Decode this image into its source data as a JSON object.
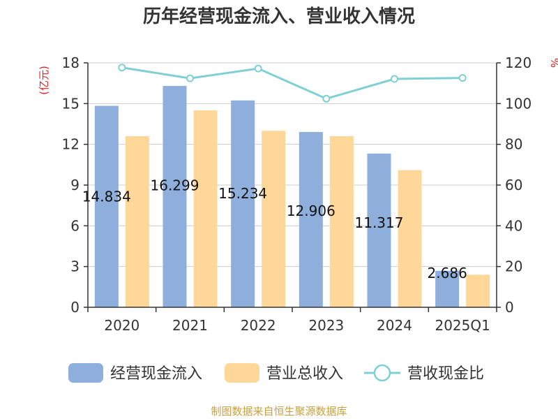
{
  "chart_data": {
    "type": "bar",
    "title": "历年经营现金流入、营业收入情况",
    "categories": [
      "2020",
      "2021",
      "2022",
      "2023",
      "2024",
      "2025Q1"
    ],
    "series": [
      {
        "name": "经营现金流入",
        "kind": "bar",
        "axis": "left",
        "color": "#8eaedb",
        "values": [
          14.834,
          16.299,
          15.234,
          12.906,
          11.317,
          2.686
        ],
        "labels": [
          "14.834",
          "16.299",
          "15.234",
          "12.906",
          "11.317",
          "2.686"
        ]
      },
      {
        "name": "营业总收入",
        "kind": "bar",
        "axis": "left",
        "color": "#ffd899",
        "values": [
          12.6,
          14.5,
          13.0,
          12.6,
          10.1,
          2.4
        ]
      },
      {
        "name": "营收现金比",
        "kind": "line",
        "axis": "right",
        "color": "#7fd0d4",
        "values": [
          117.7,
          112.4,
          117.2,
          102.4,
          112.1,
          112.6
        ]
      }
    ],
    "y_left": {
      "unit": "(亿元)",
      "min": 0,
      "max": 18,
      "ticks": [
        "0",
        "3",
        "6",
        "9",
        "12",
        "15",
        "18"
      ]
    },
    "y_right": {
      "unit": "%",
      "min": 0,
      "max": 120,
      "ticks": [
        "0",
        "20",
        "40",
        "60",
        "80",
        "100",
        "120"
      ]
    },
    "grid": true,
    "legend_position": "bottom"
  },
  "source_text": "制图数据来自恒生聚源数据库"
}
